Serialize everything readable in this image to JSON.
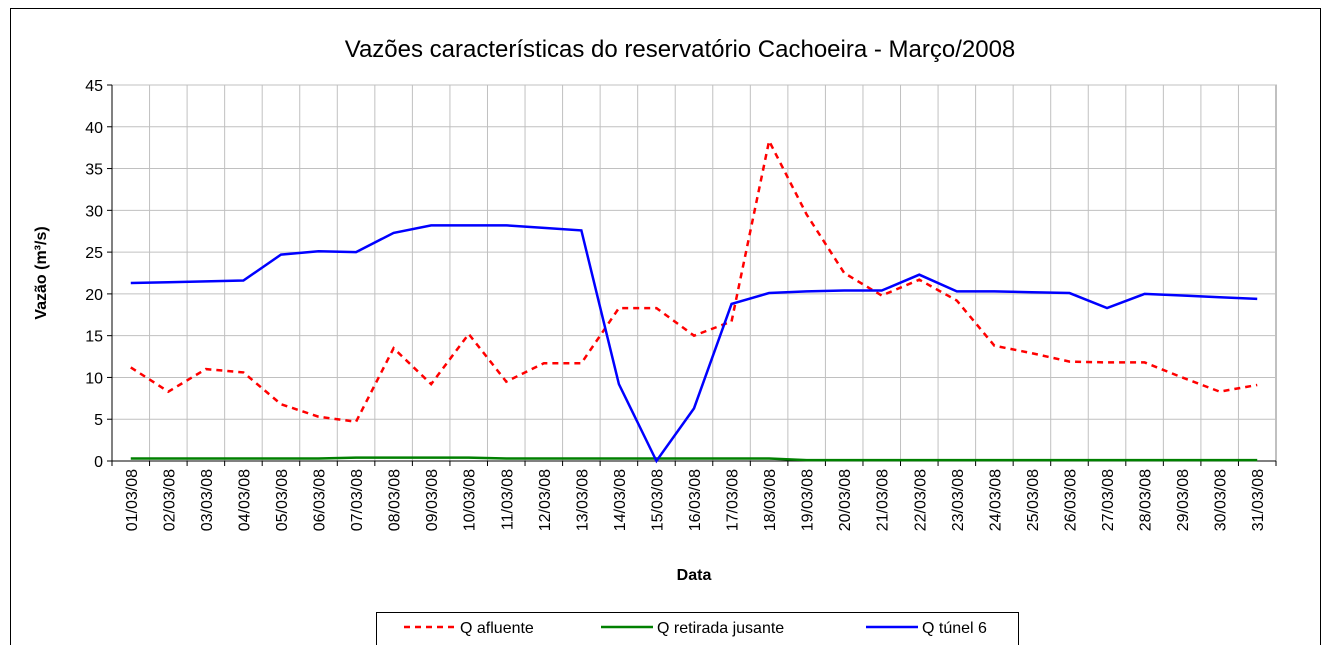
{
  "chart_data": {
    "type": "line",
    "title": "Vazões características do reservatório Cachoeira - Março/2008",
    "x_label": "Data",
    "y_label": "Vazão (m³/s)",
    "categories": [
      "01/03/08",
      "02/03/08",
      "03/03/08",
      "04/03/08",
      "05/03/08",
      "06/03/08",
      "07/03/08",
      "08/03/08",
      "09/03/08",
      "10/03/08",
      "11/03/08",
      "12/03/08",
      "13/03/08",
      "14/03/08",
      "15/03/08",
      "16/03/08",
      "17/03/08",
      "18/03/08",
      "19/03/08",
      "20/03/08",
      "21/03/08",
      "22/03/08",
      "23/03/08",
      "24/03/08",
      "25/03/08",
      "26/03/08",
      "27/03/08",
      "28/03/08",
      "29/03/08",
      "30/03/08",
      "31/03/08"
    ],
    "series": [
      {
        "name": "Q afluente",
        "color": "#ff0000",
        "dash": true,
        "values": [
          11.2,
          8.3,
          11,
          10.6,
          6.8,
          5.3,
          4.7,
          13.5,
          9.2,
          15.2,
          9.5,
          11.7,
          11.7,
          18.3,
          18.3,
          15,
          16.7,
          38.3,
          29.5,
          22.5,
          19.8,
          21.7,
          19.2,
          13.8,
          12.9,
          11.9,
          11.8,
          11.8,
          10,
          8.3,
          9.1
        ]
      },
      {
        "name": "Q retirada jusante",
        "color": "#008000",
        "dash": false,
        "values": [
          0.3,
          0.3,
          0.3,
          0.3,
          0.3,
          0.3,
          0.4,
          0.4,
          0.4,
          0.4,
          0.3,
          0.3,
          0.3,
          0.3,
          0.3,
          0.3,
          0.3,
          0.3,
          0.1,
          0.1,
          0.1,
          0.1,
          0.1,
          0.1,
          0.1,
          0.1,
          0.1,
          0.1,
          0.1,
          0.1,
          0.1
        ]
      },
      {
        "name": "Q túnel 6",
        "color": "#0000ff",
        "dash": false,
        "values": [
          21.3,
          21.4,
          21.5,
          21.6,
          24.7,
          25.1,
          25,
          27.3,
          28.2,
          28.2,
          28.2,
          27.9,
          27.6,
          9.2,
          0,
          6.3,
          18.8,
          20.1,
          20.3,
          20.4,
          20.4,
          22.3,
          20.3,
          20.3,
          20.2,
          20.1,
          18.3,
          20,
          19.8,
          19.6,
          19.4
        ]
      }
    ],
    "ylim": [
      0,
      45
    ],
    "yticks": [
      0,
      5,
      10,
      15,
      20,
      25,
      30,
      35,
      40,
      45
    ],
    "grid": true,
    "legend": "bottom"
  }
}
